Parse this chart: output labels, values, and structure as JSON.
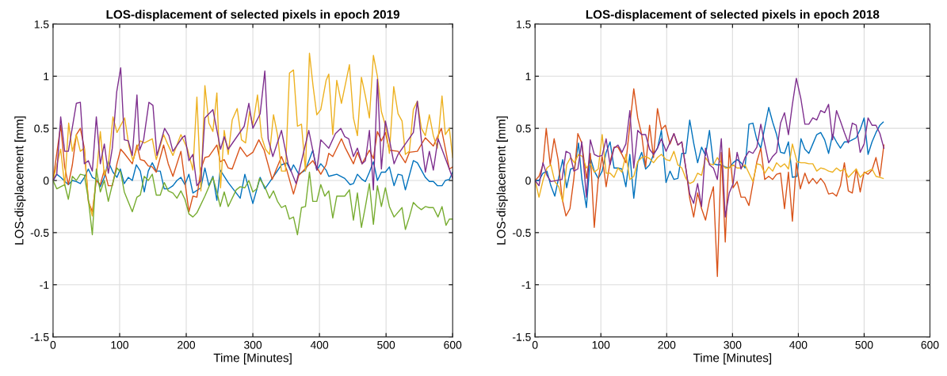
{
  "chart_data": [
    {
      "type": "line",
      "title": "LOS-displacement of selected pixels in epoch 2019",
      "xlabel": "Time [Minutes]",
      "ylabel": "LOS-displacement [mm]",
      "xlim": [
        0,
        600
      ],
      "ylim": [
        -1.5,
        1.5
      ],
      "xticks": [
        0,
        100,
        200,
        300,
        400,
        500,
        600
      ],
      "yticks": [
        -1.5,
        -1,
        -0.5,
        0,
        0.5,
        1,
        1.5
      ],
      "grid": true,
      "series": [
        {
          "color": "#0072bd",
          "x": [
            0,
            5.6,
            11.5,
            23,
            29,
            35,
            41,
            47,
            53,
            59,
            65,
            71,
            77,
            83,
            90,
            96,
            101,
            107,
            113,
            119,
            125,
            131,
            137,
            143,
            149,
            155,
            161,
            167,
            173,
            180,
            186,
            192,
            198,
            204,
            210,
            222,
            228,
            234,
            240,
            246,
            251,
            263,
            281,
            288,
            300,
            311,
            318,
            329,
            343,
            351,
            357,
            361,
            369,
            379,
            390,
            396,
            402,
            410,
            414,
            426,
            438,
            446,
            451,
            457,
            464,
            469,
            475,
            481,
            487,
            493,
            499,
            505,
            512,
            518,
            524,
            529,
            541,
            547,
            559,
            565,
            571,
            577,
            584,
            589,
            595,
            600
          ],
          "values": [
            0,
            0.06,
            0.03,
            -0.04,
            0.0,
            -0.01,
            -0.03,
            0.03,
            0.11,
            0.03,
            0.01,
            -0.06,
            0.03,
            0.18,
            0.08,
            0.03,
            0.11,
            -0.03,
            0.03,
            0.0,
            0.15,
            0.09,
            -0.11,
            0.09,
            0.17,
            0.09,
            0.09,
            -0.08,
            -0.08,
            -0.05,
            0.0,
            0.03,
            -0.04,
            0.06,
            -0.12,
            -0.07,
            0.12,
            -0.05,
            0.04,
            -0.19,
            0.1,
            -0.02,
            -0.17,
            0.06,
            -0.22,
            0.03,
            -0.08,
            0.02,
            0.15,
            0.17,
            0.09,
            0.15,
            0.06,
            0.1,
            0.29,
            0.1,
            0.16,
            0.1,
            0.04,
            0.06,
            0.02,
            -0.04,
            -0.03,
            0.06,
            0.01,
            -0.01,
            0.08,
            0.18,
            0.0,
            0.08,
            0.08,
            0.13,
            -0.05,
            0.06,
            0.05,
            -0.09,
            0.19,
            0.17,
            0.03,
            -0.01,
            -0.01,
            -0.05,
            -0.05,
            0.0,
            0.01,
            0.08
          ]
        },
        {
          "color": "#d95319",
          "x": [
            0,
            11.5,
            17.5,
            23,
            29,
            35,
            41,
            47,
            53,
            59,
            65,
            71,
            77,
            83,
            89,
            96,
            101.6,
            107,
            119,
            126,
            131,
            137,
            143,
            149,
            155,
            166,
            173,
            180,
            192,
            204,
            210,
            216,
            222,
            228,
            234,
            246,
            251,
            257,
            263,
            269,
            281,
            291,
            300,
            309,
            317,
            329,
            343,
            351,
            361,
            369,
            381,
            390,
            402,
            410,
            414,
            420,
            433,
            439,
            451,
            457,
            464,
            475,
            481,
            487,
            493,
            499,
            505,
            518,
            529,
            535,
            547,
            559,
            571,
            583,
            595,
            600
          ],
          "values": [
            0,
            0.53,
            0.13,
            -0.04,
            0.15,
            0.44,
            0.5,
            0.31,
            -0.2,
            -0.3,
            0,
            -0.04,
            0.1,
            -0.05,
            -0.05,
            0.16,
            0.3,
            0.26,
            0.16,
            0.34,
            0.2,
            0.19,
            0.14,
            0.13,
            0.08,
            0.34,
            0.16,
            0.04,
            0.28,
            -0.3,
            -0.15,
            -0.16,
            0.11,
            0.22,
            0.23,
            0.34,
            0.18,
            0.2,
            0.12,
            0.11,
            0.32,
            0.23,
            0.27,
            0.39,
            0.29,
            0.01,
            0.23,
            0.1,
            -0.13,
            0.05,
            0.13,
            0.19,
            0.06,
            0.15,
            0.26,
            0.23,
            0.4,
            0.31,
            0.16,
            0.27,
            0.16,
            0.29,
            0.21,
            0.47,
            0.38,
            0.46,
            0.29,
            0.28,
            0.17,
            0.27,
            0.28,
            0.41,
            0.33,
            0.5,
            0.11,
            0.13
          ]
        },
        {
          "color": "#edb120",
          "x": [
            0,
            11.5,
            17.5,
            23.5,
            29,
            35,
            41,
            47,
            53,
            59,
            65,
            71,
            77,
            83,
            90,
            96,
            107.5,
            114,
            120,
            126,
            131,
            137,
            149,
            155,
            166,
            172,
            180,
            192,
            202,
            210,
            216,
            222,
            228,
            234,
            240,
            246,
            251.5,
            257,
            263,
            269,
            276.5,
            283,
            289,
            295,
            300,
            307,
            313,
            319,
            325,
            331,
            337,
            343,
            349,
            355,
            361,
            367,
            373,
            379,
            385,
            390.5,
            396,
            402,
            410,
            414,
            420,
            426,
            433,
            445,
            451,
            457,
            463,
            469,
            475,
            481,
            487,
            493,
            499,
            505,
            511.5,
            518,
            524,
            529,
            535,
            541,
            547,
            553,
            559,
            565,
            571,
            577,
            584,
            589,
            595,
            600
          ],
          "values": [
            0,
            0.3,
            -0.05,
            0.55,
            0.28,
            0.44,
            0.28,
            0.31,
            -0.19,
            -0.34,
            0.04,
            0.47,
            0.05,
            0.15,
            0.61,
            0.46,
            0.6,
            0.33,
            0.19,
            0.31,
            0.38,
            0.36,
            0.4,
            0.2,
            0.44,
            0.35,
            0.24,
            0.44,
            0.3,
            0.1,
            0.8,
            -0.1,
            0.91,
            0.55,
            0.47,
            0.84,
            -0.07,
            0.48,
            0.25,
            0.58,
            0.69,
            0.39,
            0.36,
            0.66,
            0.53,
            0.82,
            0.42,
            0.3,
            0.25,
            0.63,
            0.44,
            0.09,
            0.09,
            1.03,
            1.06,
            0.52,
            0.54,
            0.09,
            1.22,
            0.9,
            0.63,
            0.68,
            0.96,
            1.02,
            0.44,
            0.96,
            0.74,
            1.11,
            0.6,
            0.43,
            0.99,
            0.81,
            0.6,
            1.2,
            1.0,
            0.66,
            0.53,
            0.26,
            0.9,
            0.64,
            0.57,
            0.25,
            0.28,
            0.68,
            0.76,
            0.5,
            0.43,
            0.63,
            0.43,
            0.31,
            0.81,
            0.44,
            0.5,
            0.22
          ]
        },
        {
          "color": "#7e2f8e",
          "x": [
            0,
            5.6,
            11.5,
            17.5,
            23,
            35,
            41,
            47,
            53,
            59,
            65,
            71,
            77,
            83,
            89,
            95.6,
            101.6,
            107,
            113,
            119,
            126,
            130,
            136,
            144,
            150,
            156,
            167.5,
            174,
            180,
            194,
            198,
            204,
            210,
            216,
            222,
            228,
            240,
            251.5,
            257,
            263,
            287,
            294,
            300,
            311,
            318,
            323,
            330,
            343,
            353,
            365,
            384,
            396,
            402,
            408,
            414,
            424,
            432,
            438,
            444,
            451,
            457,
            464,
            469,
            475,
            481,
            487,
            493,
            499,
            506,
            512,
            518,
            529,
            541,
            547,
            553,
            559,
            565,
            571,
            578,
            595,
            600
          ],
          "values": [
            0,
            0.06,
            0.61,
            0.28,
            0.28,
            0.74,
            0.75,
            0.16,
            0.19,
            0.09,
            0.61,
            0.16,
            0.35,
            0.07,
            0.31,
            0.85,
            1.08,
            0.39,
            0.38,
            0.24,
            0.82,
            0.29,
            0.39,
            0.75,
            0.72,
            0.24,
            0.5,
            0.43,
            0.28,
            0.41,
            0.43,
            0.19,
            0.25,
            -0.05,
            0.0,
            0.6,
            0.68,
            0.3,
            0.42,
            0.3,
            0.52,
            0.74,
            0.5,
            0.64,
            1.05,
            0.4,
            0.23,
            0.48,
            0.16,
            -0.03,
            0.48,
            0.1,
            0.39,
            0.35,
            0.31,
            0.45,
            0.5,
            0.42,
            0.4,
            0.23,
            0.31,
            0.16,
            0.19,
            0.48,
            -0.09,
            0.97,
            0.11,
            0.57,
            0.36,
            0.16,
            0.25,
            0.35,
            0.46,
            0.76,
            0.39,
            0.08,
            0.28,
            0.1,
            0.4,
            0.11,
            0.02
          ]
        },
        {
          "color": "#77ac30",
          "x": [
            0,
            5.6,
            11.5,
            17.5,
            23,
            29,
            35,
            41,
            47,
            53,
            59,
            65,
            71,
            77,
            83,
            89,
            96,
            101.6,
            107,
            119,
            126,
            131,
            137,
            143,
            149,
            155,
            161,
            167,
            173,
            180,
            186,
            192,
            198,
            204,
            210,
            216,
            228,
            234,
            240,
            246,
            251,
            257,
            263,
            275,
            281,
            288,
            294,
            300,
            306,
            310,
            318,
            325,
            331,
            337,
            343,
            349,
            355,
            361,
            367,
            373,
            379,
            385,
            390,
            396,
            402,
            408,
            414,
            420,
            426,
            432,
            438,
            445,
            451,
            457,
            463,
            469,
            475,
            481,
            487,
            493,
            499,
            505,
            512,
            524,
            529,
            535,
            541,
            547,
            553,
            559,
            565,
            571,
            578,
            584,
            590,
            595,
            600
          ],
          "values": [
            0,
            -0.08,
            -0.06,
            -0.04,
            -0.18,
            0.04,
            0.0,
            0.06,
            0.05,
            -0.18,
            -0.52,
            0.11,
            -0.11,
            0.0,
            -0.2,
            -0.04,
            0.12,
            0.08,
            -0.11,
            -0.3,
            -0.16,
            -0.14,
            0.04,
            0.0,
            0.06,
            -0.14,
            -0.14,
            -0.02,
            -0.1,
            -0.12,
            -0.17,
            -0.1,
            -0.18,
            -0.32,
            -0.35,
            -0.31,
            -0.15,
            -0.06,
            0.03,
            -0.11,
            -0.25,
            -0.11,
            -0.25,
            -0.09,
            -0.06,
            -0.07,
            0.0,
            -0.11,
            -0.08,
            0.02,
            -0.06,
            -0.17,
            -0.1,
            -0.2,
            -0.26,
            -0.24,
            -0.37,
            -0.35,
            -0.52,
            -0.26,
            -0.25,
            0.08,
            -0.2,
            -0.2,
            -0.04,
            -0.15,
            -0.1,
            -0.36,
            -0.15,
            -0.15,
            -0.15,
            -0.09,
            -0.38,
            -0.12,
            -0.45,
            -0.25,
            -0.03,
            -0.42,
            -0.05,
            -0.25,
            -0.07,
            -0.25,
            -0.35,
            -0.26,
            -0.47,
            -0.35,
            -0.21,
            -0.25,
            -0.28,
            -0.25,
            -0.26,
            -0.26,
            -0.35,
            -0.25,
            -0.43,
            -0.37,
            -0.37
          ]
        }
      ]
    },
    {
      "type": "line",
      "title": "LOS-displacement of selected pixels in epoch 2018",
      "xlabel": "Time [Minutes]",
      "ylabel": "LOS-displacement [mm]",
      "xlim": [
        0,
        600
      ],
      "ylim": [
        -1.5,
        1.5
      ],
      "xticks": [
        0,
        100,
        200,
        300,
        400,
        500,
        600
      ],
      "yticks": [
        -1.5,
        -1,
        -0.5,
        0,
        0.5,
        1,
        1.5
      ],
      "grid": true,
      "series": [
        {
          "color": "#0072bd",
          "x": [
            0,
            6,
            12,
            18,
            24,
            30,
            36,
            42,
            48,
            54,
            60,
            66,
            71,
            78,
            84,
            90,
            96,
            102,
            108,
            114,
            120,
            126,
            132,
            138,
            144,
            150,
            156,
            162,
            168,
            174,
            180,
            186,
            192,
            199,
            205,
            211,
            217,
            223,
            229,
            235,
            241,
            247,
            253,
            259,
            265,
            271,
            277,
            283,
            289,
            295,
            301,
            307,
            313,
            319,
            325,
            331,
            337,
            343,
            349,
            355,
            361,
            367,
            373,
            379,
            385,
            391,
            398,
            404,
            410,
            416,
            422,
            428,
            434,
            440,
            446,
            452,
            458,
            464,
            470,
            476,
            482,
            488,
            494,
            500,
            506,
            512,
            518,
            524,
            529
          ],
          "values": [
            0,
            0.0,
            0.07,
            0.09,
            -0.05,
            -0.15,
            0.03,
            0.2,
            -0.07,
            0.11,
            0.12,
            0.36,
            0.02,
            -0.26,
            0.22,
            0.09,
            0.02,
            0.09,
            0.27,
            0.37,
            0.12,
            0.12,
            0.11,
            -0.06,
            0.25,
            -0.17,
            0.17,
            0.27,
            0.11,
            0.15,
            0.25,
            0.31,
            0.48,
            -0.02,
            0.09,
            0.01,
            0.02,
            0.26,
            0.26,
            0.58,
            0.36,
            0.17,
            0.32,
            0.24,
            0.48,
            0.16,
            0.15,
            0.15,
            0.13,
            0.12,
            0.17,
            0.2,
            0.17,
            0.12,
            0.54,
            0.55,
            0.39,
            0.31,
            0.51,
            0.7,
            0.56,
            0.44,
            0.27,
            0.26,
            0.37,
            0.03,
            0.04,
            0.4,
            0.3,
            0.26,
            0.35,
            0.44,
            0.46,
            0.39,
            0.26,
            0.44,
            0.37,
            0.31,
            0.37,
            0.37,
            0.39,
            0.41,
            0.49,
            0.6,
            0.25,
            0.37,
            0.46,
            0.53,
            0.56
          ]
        },
        {
          "color": "#d95319",
          "x": [
            0,
            6,
            12,
            17,
            23,
            29,
            35,
            41,
            47,
            53,
            59,
            65,
            71,
            78,
            84,
            90,
            96,
            102,
            108,
            114,
            120,
            126,
            132,
            138,
            144,
            150,
            156,
            162,
            168,
            174,
            180,
            186,
            192,
            198,
            205,
            211,
            217,
            223,
            229,
            235,
            241,
            247,
            253,
            259,
            265,
            271,
            277,
            283,
            289,
            295,
            301,
            307,
            313,
            319,
            325,
            331,
            337,
            343,
            349,
            355,
            361,
            367,
            373,
            379,
            385,
            391,
            397,
            403,
            410,
            416,
            422,
            428,
            434,
            440,
            446,
            452,
            458,
            464,
            470,
            476,
            482,
            488,
            494,
            500,
            506,
            512,
            518,
            524,
            530
          ],
          "values": [
            0,
            0.04,
            0.15,
            0.5,
            0.15,
            0.4,
            0.2,
            -0.17,
            -0.34,
            -0.27,
            0.02,
            0.45,
            0.36,
            0.02,
            0.26,
            -0.45,
            0.01,
            0.23,
            -0.06,
            0.18,
            0.32,
            0.32,
            0.25,
            0.17,
            0.53,
            0.88,
            0.6,
            0.44,
            0.13,
            0.53,
            0.22,
            0.69,
            0.49,
            0.53,
            0.35,
            0.45,
            0.34,
            0.37,
            0.12,
            -0.17,
            -0.35,
            -0.12,
            -0.27,
            -0.38,
            -0.19,
            -0.06,
            -0.92,
            0.27,
            -0.59,
            0.31,
            -0.07,
            -0.01,
            -0.16,
            -0.16,
            -0.24,
            -0.03,
            0.18,
            0.31,
            0.01,
            0.04,
            0.01,
            0.06,
            0.07,
            -0.27,
            0.08,
            -0.39,
            0.17,
            -0.08,
            0.07,
            -0.03,
            0.02,
            -0.03,
            0.02,
            -0.03,
            -0.13,
            -0.12,
            -0.15,
            -0.05,
            0.17,
            -0.1,
            -0.12,
            0.11,
            -0.11,
            0.08,
            0.06,
            0.1,
            0.22,
            0.04,
            0.34
          ]
        },
        {
          "color": "#edb120",
          "x": [
            0,
            6,
            12,
            18,
            24,
            30,
            36,
            42,
            48,
            54,
            60,
            66,
            72,
            78,
            84,
            90,
            96,
            102,
            108,
            114,
            120,
            126,
            132,
            138,
            144,
            150,
            156,
            162,
            168,
            174,
            180,
            186,
            192,
            199,
            205,
            211,
            217,
            223,
            229,
            235,
            241,
            247,
            253,
            259,
            265,
            271,
            277,
            283,
            289,
            295,
            301,
            307,
            313,
            319,
            325,
            331,
            337,
            343,
            349,
            355,
            361,
            367,
            373,
            379,
            385,
            391,
            398,
            404,
            410,
            416,
            422,
            428,
            434,
            440,
            446,
            452,
            458,
            464,
            470,
            476,
            482,
            488,
            494,
            500,
            506,
            512,
            518,
            524,
            529
          ],
          "values": [
            0,
            -0.16,
            0.0,
            0.12,
            0.15,
            -0.01,
            -0.06,
            -0.2,
            0.15,
            0.22,
            0.17,
            0.25,
            0.23,
            0.12,
            0.16,
            0.08,
            0.11,
            0.44,
            0.07,
            0.07,
            0.03,
            0.12,
            0.08,
            0.25,
            0.01,
            0.04,
            0.18,
            0.22,
            0.23,
            0.21,
            0.17,
            0.22,
            0.25,
            0.2,
            0.19,
            0.28,
            0.15,
            0.12,
            0.02,
            -0.03,
            -0.01,
            0.07,
            0.05,
            0.22,
            0.16,
            0.15,
            0.22,
            0.16,
            0.12,
            0.12,
            0.15,
            0.12,
            0.12,
            0.15,
            0.07,
            -0.01,
            0.16,
            0.15,
            0.07,
            0.13,
            0.09,
            0.17,
            0.13,
            0.16,
            0.11,
            0.35,
            0.18,
            0.17,
            0.17,
            0.16,
            0.16,
            0.09,
            0.12,
            0.11,
            0.09,
            0.08,
            0.12,
            0.09,
            0.11,
            0.03,
            0.07,
            0.11,
            0.03,
            0.07,
            0.09,
            0.11,
            0.04,
            0.03,
            0.02
          ]
        },
        {
          "color": "#7e2f8e",
          "x": [
            0,
            6,
            12,
            18,
            24,
            41,
            47,
            53,
            59,
            65,
            71,
            78,
            84,
            90,
            96,
            102,
            108,
            114,
            120,
            126,
            132,
            138,
            144,
            150,
            156,
            162,
            168,
            174,
            180,
            186,
            192,
            199,
            211,
            217,
            223,
            229,
            235,
            241,
            247,
            253,
            259,
            265,
            271,
            277,
            283,
            289,
            295,
            301,
            307,
            313,
            319,
            325,
            331,
            337,
            343,
            349,
            355,
            361,
            367,
            373,
            379,
            385,
            391,
            397,
            404,
            410,
            416,
            422,
            428,
            434,
            440,
            446,
            452,
            458,
            464,
            470,
            476,
            482,
            488,
            494,
            500,
            506,
            512,
            518,
            524,
            530
          ],
          "values": [
            0,
            -0.05,
            0.17,
            0.05,
            -0.01,
            0.01,
            0.28,
            0.26,
            0.09,
            0.11,
            0.37,
            -0.16,
            0.39,
            0.25,
            0.23,
            0.24,
            0.4,
            0.15,
            0.31,
            0.34,
            0.27,
            0.35,
            0.67,
            0.12,
            0.48,
            0.44,
            0.44,
            0.3,
            0.25,
            0.31,
            0.4,
            0.28,
            0.45,
            0.34,
            0.37,
            0.12,
            -0.13,
            -0.22,
            -0.03,
            -0.25,
            0.31,
            0.15,
            0.12,
            0.01,
            0.4,
            -0.35,
            -0.12,
            -0.03,
            0.27,
            0.11,
            0.22,
            0.28,
            0.26,
            0.32,
            0.54,
            0.35,
            0.17,
            0.23,
            0.27,
            0.55,
            0.65,
            0.44,
            0.73,
            0.98,
            0.78,
            0.54,
            0.54,
            0.6,
            0.58,
            0.67,
            0.65,
            0.73,
            0.39,
            0.67,
            0.57,
            0.46,
            0.36,
            0.55,
            0.53,
            0.27,
            0.35,
            0.6,
            0.53,
            0.53,
            0.45,
            0.31
          ]
        }
      ]
    }
  ]
}
